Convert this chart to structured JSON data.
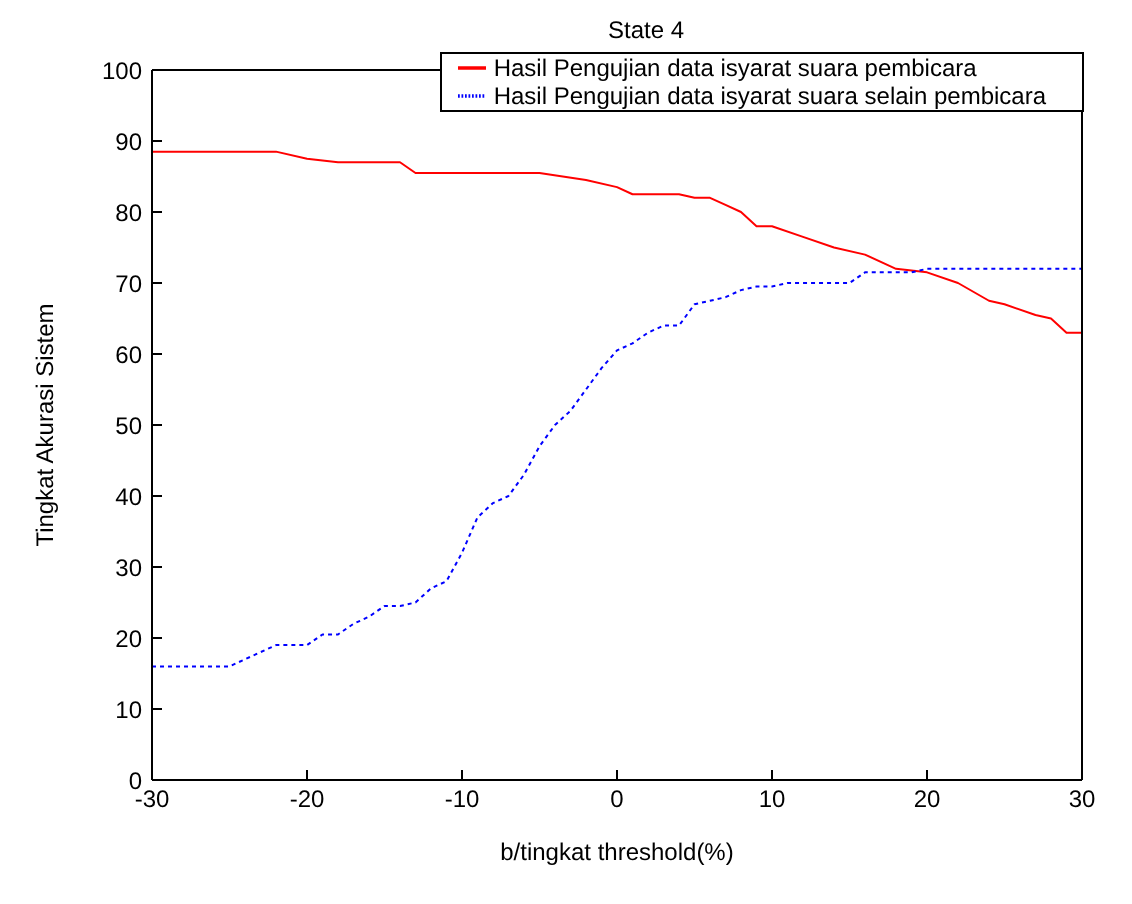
{
  "chart_data": {
    "type": "line",
    "title": "State 4",
    "xlabel": "b/tingkat threshold(%)",
    "ylabel": "Tingkat Akurasi Sistem",
    "xlim": [
      -30,
      30
    ],
    "xticks": [
      -30,
      -20,
      -10,
      0,
      10,
      20,
      30
    ],
    "ylim": [
      0,
      100
    ],
    "yticks": [
      0,
      10,
      20,
      30,
      40,
      50,
      60,
      70,
      80,
      90,
      100
    ],
    "grid": false,
    "legend": "top right",
    "marker": "none",
    "series": [
      {
        "name": "Hasil Pengujian data isyarat suara pembicara",
        "color": "#ff0000",
        "line_style": "solid",
        "x": [
          -30,
          -22,
          -20,
          -18,
          -14,
          -13,
          -5,
          -2,
          0,
          1,
          4,
          5,
          6,
          7,
          8,
          9,
          10,
          12,
          14,
          16,
          18,
          20,
          22,
          24,
          25,
          27,
          28,
          29,
          30
        ],
        "values": [
          88.5,
          88.5,
          87.5,
          87,
          87,
          85.5,
          85.5,
          84.5,
          83.5,
          82.5,
          82.5,
          82,
          82,
          81,
          80,
          78,
          78,
          76.5,
          75,
          74,
          72,
          71.5,
          70,
          67.5,
          67,
          65.5,
          65,
          63,
          63
        ]
      },
      {
        "name": "Hasil Pengujian data isyarat suara selain pembicara",
        "color": "#0000ff",
        "line_style": "dotted",
        "x": [
          -30,
          -25,
          -24,
          -22,
          -20,
          -19,
          -18,
          -17,
          -16,
          -15,
          -14,
          -13,
          -12,
          -11,
          -10,
          -9,
          -8,
          -7,
          -6,
          -5,
          -4,
          -3,
          -2,
          -1,
          0,
          1,
          2,
          3,
          4,
          5,
          6,
          7,
          8,
          9,
          10,
          11,
          15,
          16,
          19,
          20,
          30
        ],
        "values": [
          16,
          16,
          17,
          19,
          19,
          20.5,
          20.5,
          22,
          23,
          24.5,
          24.5,
          25,
          27,
          28,
          32,
          37,
          39,
          40,
          43,
          47,
          50,
          52,
          55,
          58,
          60.5,
          61.5,
          63,
          64,
          64,
          67,
          67.5,
          68,
          69,
          69.5,
          69.5,
          70,
          70,
          71.5,
          71.5,
          72,
          72
        ]
      }
    ]
  }
}
